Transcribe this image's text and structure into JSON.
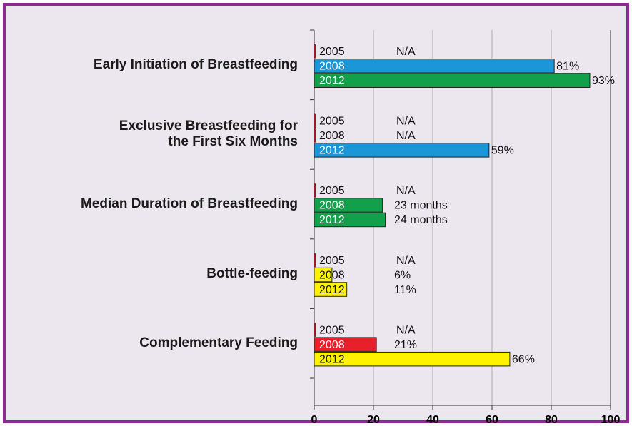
{
  "chart_data": {
    "type": "bar",
    "orientation": "horizontal",
    "categories": [
      "Early Initiation of Breastfeeding",
      "Exclusive Breastfeeding for\nthe First Six Months",
      "Median Duration of Breastfeeding",
      "Bottle-feeding",
      "Complementary Feeding"
    ],
    "series": [
      {
        "name": "2005",
        "colors": [
          "#a3152a",
          "#a3152a",
          "#a3152a",
          "#a3152a",
          "#a3152a"
        ],
        "values": [
          null,
          null,
          null,
          null,
          null
        ],
        "value_labels": [
          "N/A",
          "N/A",
          "N/A",
          "N/A",
          "N/A"
        ]
      },
      {
        "name": "2008",
        "colors": [
          "#1b96d8",
          "#a3152a",
          "#12a04a",
          "#fff200",
          "#e8202a"
        ],
        "values": [
          81,
          null,
          23,
          6,
          21
        ],
        "value_labels": [
          "81%",
          "N/A",
          "23 months",
          "6%",
          "21%"
        ]
      },
      {
        "name": "2012",
        "colors": [
          "#12a04a",
          "#1b96d8",
          "#12a04a",
          "#fff200",
          "#fff200"
        ],
        "values": [
          93,
          59,
          24,
          11,
          66
        ],
        "value_labels": [
          "93%",
          "59%",
          "24 months",
          "11%",
          "66%"
        ]
      }
    ],
    "xlim": [
      0,
      100
    ],
    "xticks": [
      0,
      20,
      40,
      60,
      80,
      100
    ],
    "grid": true
  }
}
